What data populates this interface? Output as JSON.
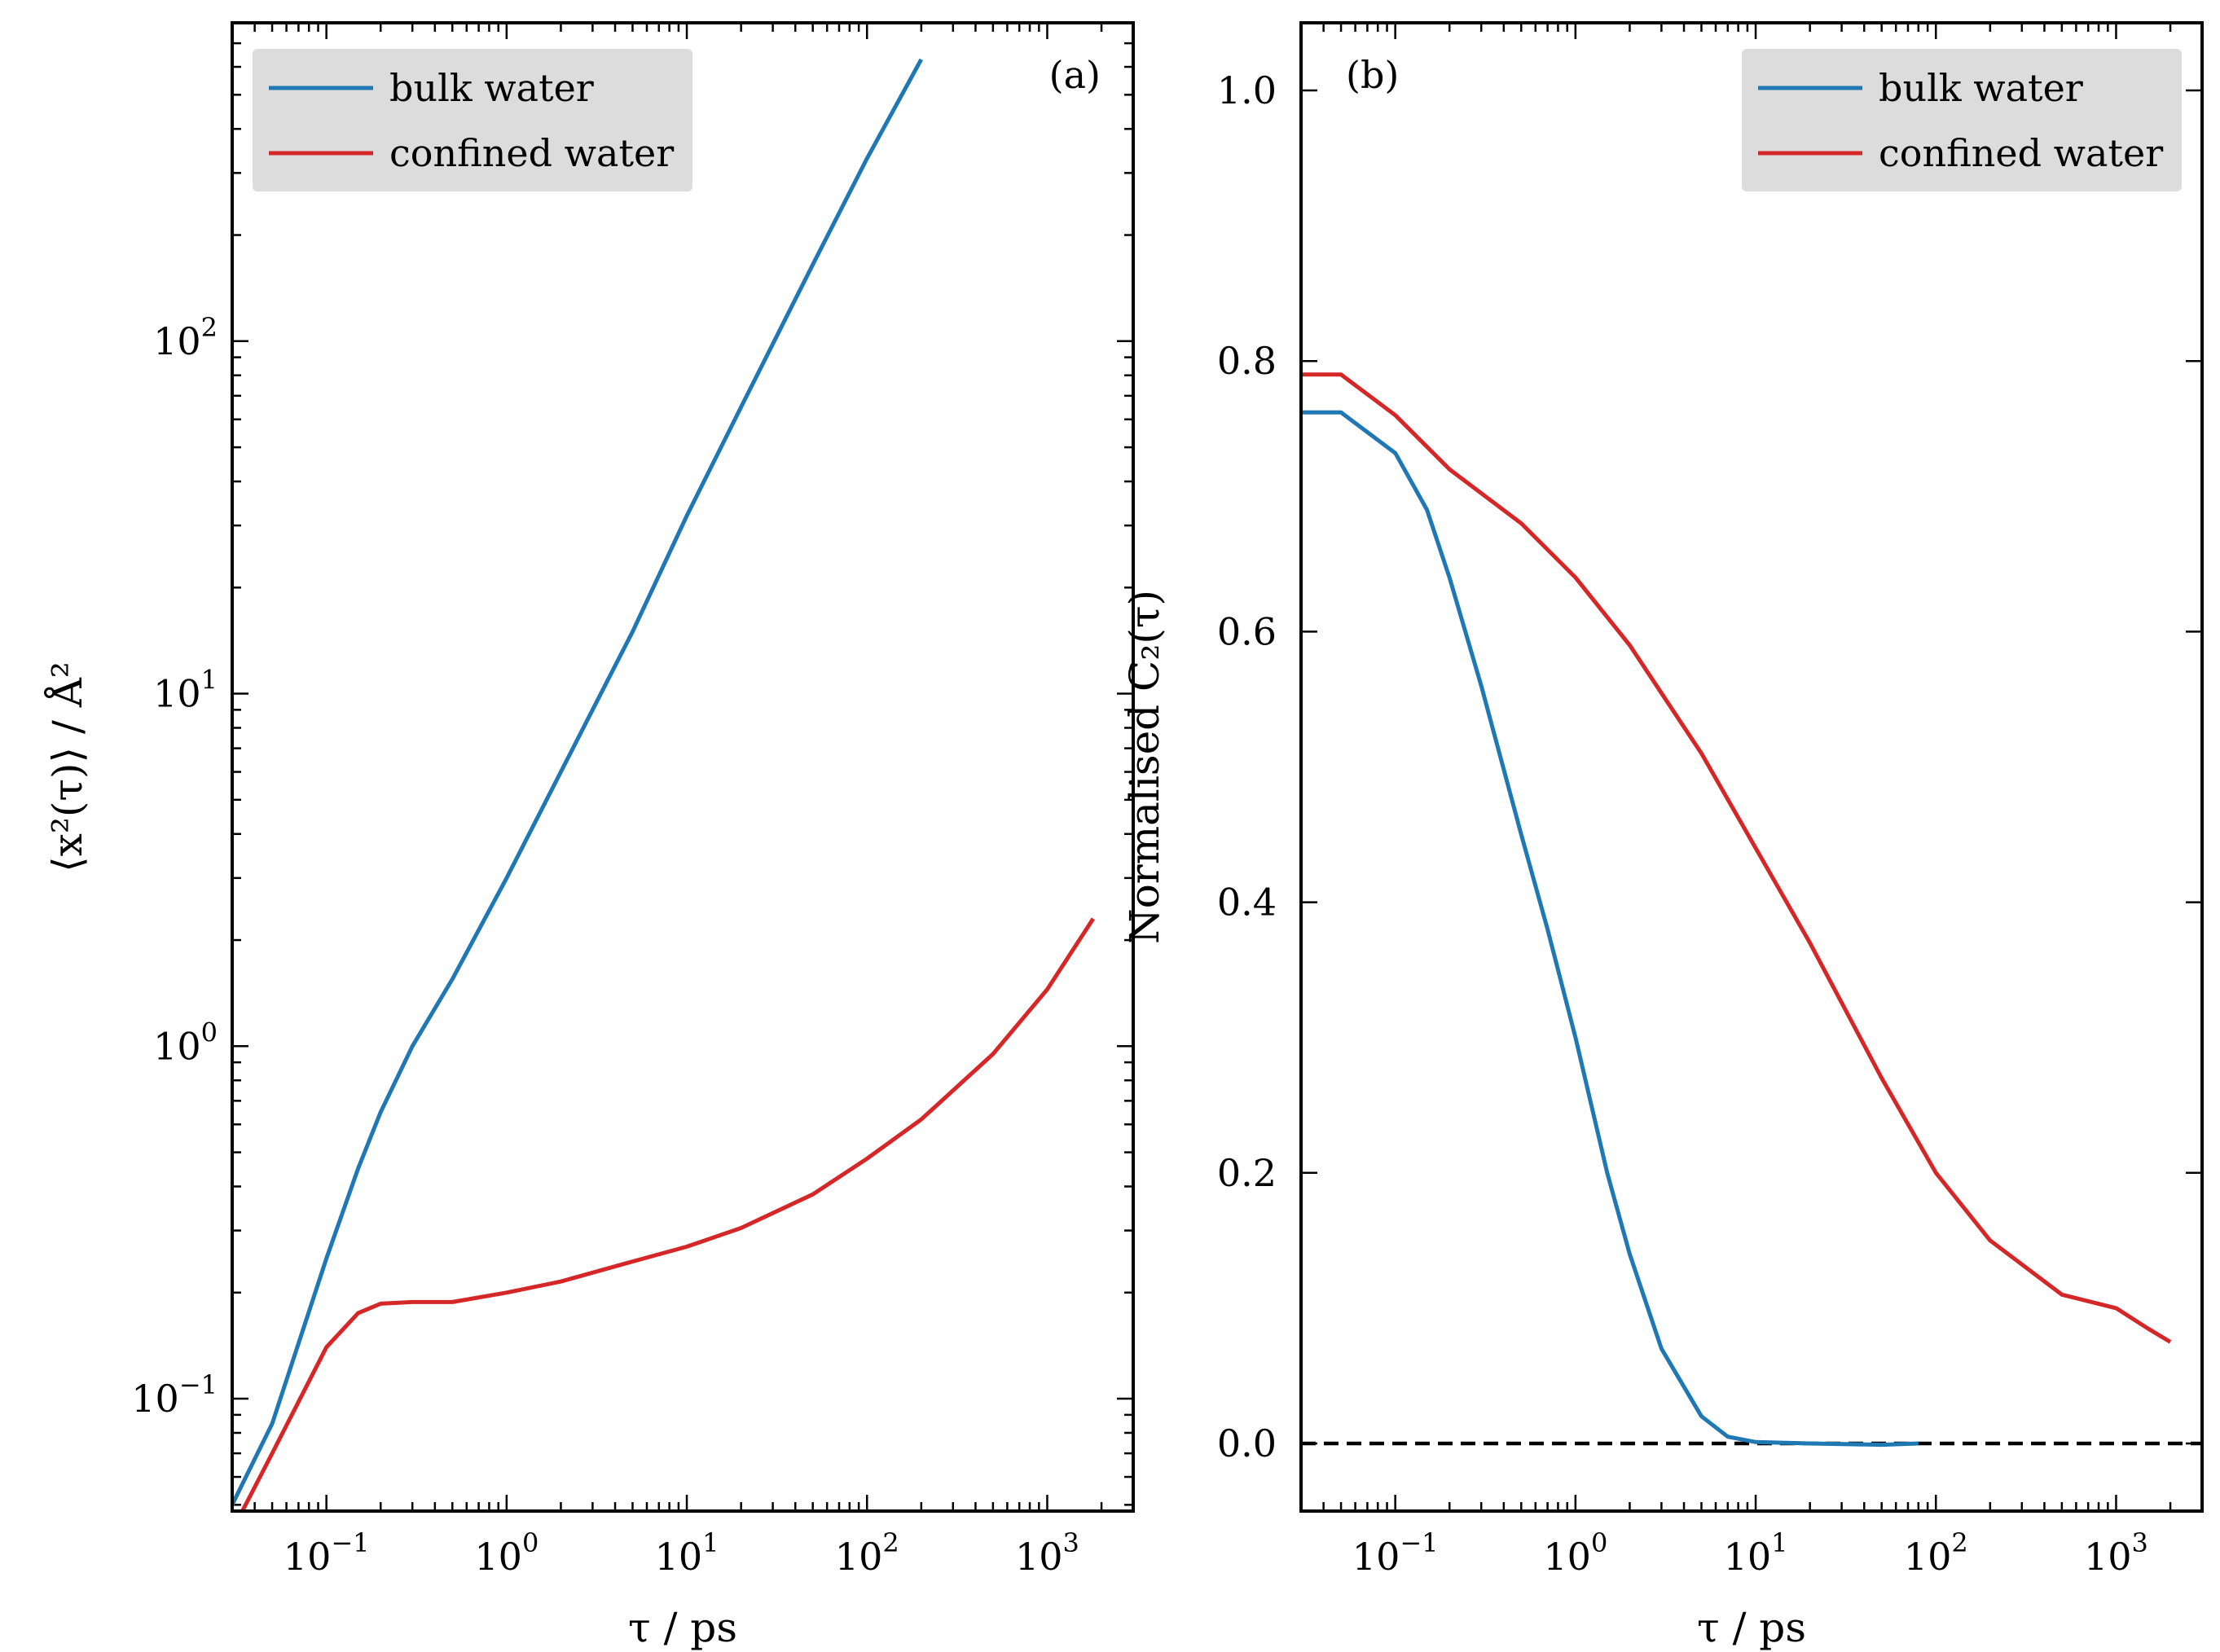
{
  "chart_data": [
    {
      "type": "line",
      "panel": "(a)",
      "xlabel": "τ / ps",
      "ylabel": "⟨x²(τ)⟩ / Å²",
      "xscale": "log",
      "yscale": "log",
      "xlim": [
        0.03,
        3000
      ],
      "ylim": [
        0.048,
        800
      ],
      "xticks": [
        {
          "mantissa": "10",
          "exp": "−1",
          "value": 0.1
        },
        {
          "mantissa": "10",
          "exp": "0",
          "value": 1
        },
        {
          "mantissa": "10",
          "exp": "1",
          "value": 10
        },
        {
          "mantissa": "10",
          "exp": "2",
          "value": 100
        },
        {
          "mantissa": "10",
          "exp": "3",
          "value": 1000
        }
      ],
      "yticks": [
        {
          "mantissa": "10",
          "exp": "−1",
          "value": 0.1
        },
        {
          "mantissa": "10",
          "exp": "0",
          "value": 1
        },
        {
          "mantissa": "10",
          "exp": "1",
          "value": 10
        },
        {
          "mantissa": "10",
          "exp": "2",
          "value": 100
        }
      ],
      "legend": {
        "placement": "top-left"
      },
      "series": [
        {
          "name": "bulk water",
          "color": "#1f77b4",
          "x": [
            0.03,
            0.05,
            0.1,
            0.15,
            0.2,
            0.3,
            0.5,
            1,
            2,
            5,
            10,
            20,
            50,
            100,
            200
          ],
          "y": [
            0.05,
            0.085,
            0.25,
            0.45,
            0.65,
            1.0,
            1.55,
            3.0,
            6.0,
            15,
            32,
            65,
            165,
            330,
            630
          ]
        },
        {
          "name": "confined water",
          "color": "#d62728",
          "x": [
            0.032,
            0.05,
            0.1,
            0.15,
            0.2,
            0.3,
            0.5,
            1,
            2,
            5,
            10,
            20,
            50,
            100,
            200,
            500,
            1000,
            1800
          ],
          "y": [
            0.045,
            0.07,
            0.14,
            0.175,
            0.186,
            0.188,
            0.188,
            0.2,
            0.215,
            0.245,
            0.27,
            0.305,
            0.38,
            0.48,
            0.62,
            0.95,
            1.45,
            2.3
          ]
        }
      ]
    },
    {
      "type": "line",
      "panel": "(b)",
      "xlabel": "τ / ps",
      "ylabel": "Normalised C₂(τ)",
      "xscale": "log",
      "yscale": "linear",
      "xlim": [
        0.03,
        3000
      ],
      "ylim": [
        -0.05,
        1.05
      ],
      "xticks": [
        {
          "mantissa": "10",
          "exp": "−1",
          "value": 0.1
        },
        {
          "mantissa": "10",
          "exp": "0",
          "value": 1
        },
        {
          "mantissa": "10",
          "exp": "1",
          "value": 10
        },
        {
          "mantissa": "10",
          "exp": "2",
          "value": 100
        },
        {
          "mantissa": "10",
          "exp": "3",
          "value": 1000
        }
      ],
      "yticks": [
        {
          "label": "0.0",
          "value": 0.0
        },
        {
          "label": "0.2",
          "value": 0.2
        },
        {
          "label": "0.4",
          "value": 0.4
        },
        {
          "label": "0.6",
          "value": 0.6
        },
        {
          "label": "0.8",
          "value": 0.8
        },
        {
          "label": "1.0",
          "value": 1.0
        }
      ],
      "reference_line": {
        "y": 0.0,
        "style": "dashed",
        "color": "#000000"
      },
      "legend": {
        "placement": "top-right"
      },
      "series": [
        {
          "name": "bulk water",
          "color": "#1f77b4",
          "x": [
            0.03,
            0.05,
            0.1,
            0.15,
            0.2,
            0.3,
            0.5,
            0.7,
            1,
            1.5,
            2,
            3,
            5,
            7,
            10,
            20,
            50,
            80
          ],
          "y": [
            0.762,
            0.762,
            0.732,
            0.69,
            0.64,
            0.56,
            0.45,
            0.38,
            0.3,
            0.2,
            0.14,
            0.07,
            0.02,
            0.005,
            0.001,
            0.0,
            -0.001,
            0.0
          ]
        },
        {
          "name": "confined water",
          "color": "#d62728",
          "x": [
            0.03,
            0.05,
            0.1,
            0.2,
            0.5,
            1,
            2,
            5,
            10,
            20,
            50,
            100,
            200,
            500,
            1000,
            1500,
            2000
          ],
          "y": [
            0.79,
            0.79,
            0.76,
            0.72,
            0.68,
            0.64,
            0.59,
            0.51,
            0.44,
            0.37,
            0.27,
            0.2,
            0.15,
            0.11,
            0.1,
            0.085,
            0.075
          ]
        }
      ]
    }
  ]
}
